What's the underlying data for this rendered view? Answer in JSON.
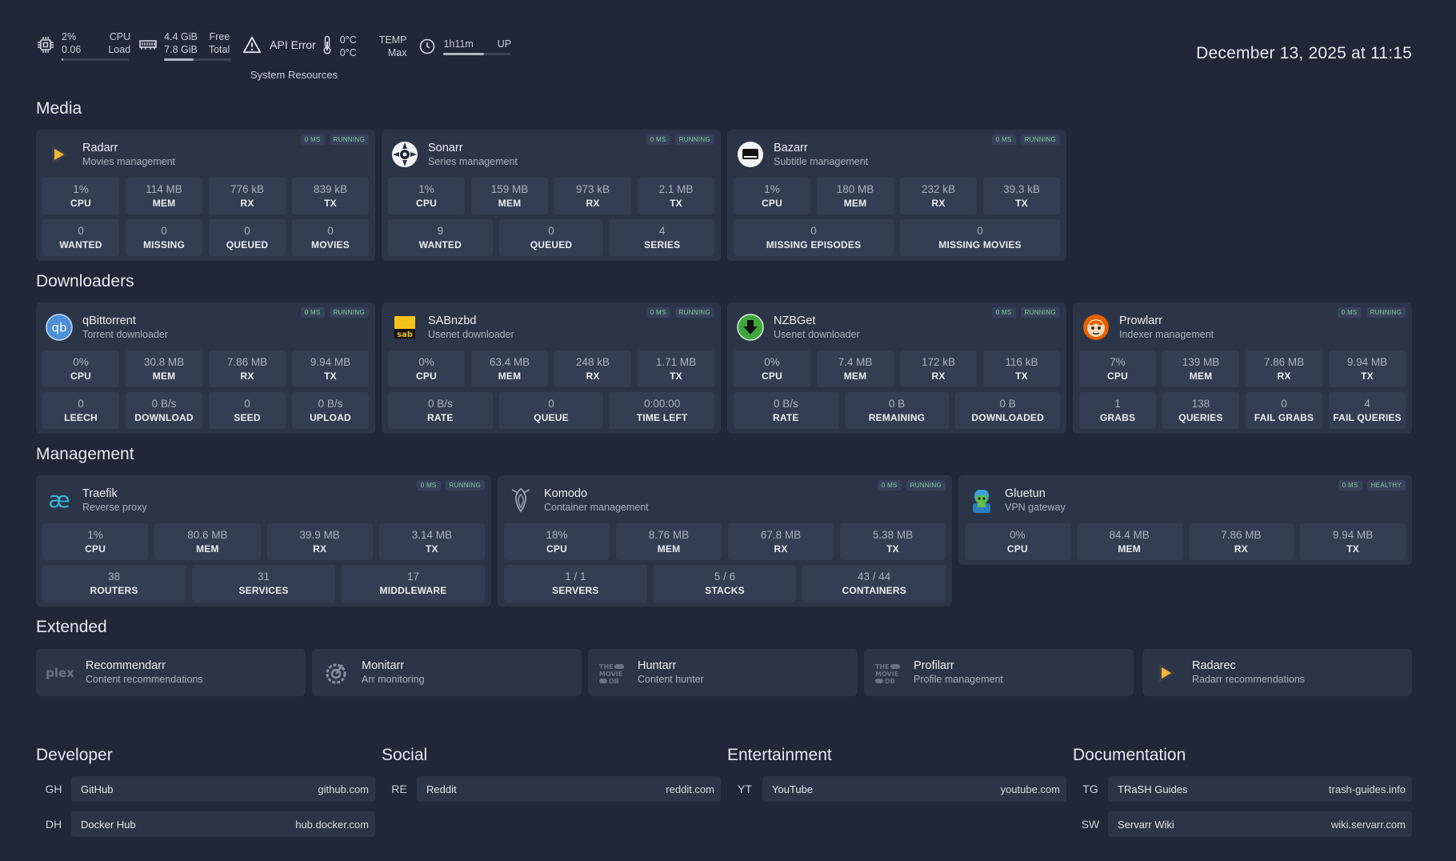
{
  "system": {
    "cpu": {
      "percent": "2%",
      "load": "0.06",
      "label1": "CPU",
      "label2": "Load",
      "usage_fraction": 0.02
    },
    "memory": {
      "free": "4.4 GiB",
      "total": "7.8 GiB",
      "label1": "Free",
      "label2": "Total",
      "used_fraction": 0.44
    },
    "api_error": "API Error",
    "temp": {
      "v1": "0°C",
      "v2": "0°C",
      "label1": "TEMP",
      "label2": "Max"
    },
    "uptime": {
      "value": "1h11m",
      "label": "UP",
      "fraction": 0.6
    },
    "section_label": "System Resources"
  },
  "datetime": "December 13, 2025 at 11:15",
  "sections": {
    "media": "Media",
    "downloaders": "Downloaders",
    "management": "Management",
    "extended": "Extended"
  },
  "media": [
    {
      "name": "Radarr",
      "desc": "Movies management",
      "badge_ms": "0 MS",
      "badge_status": "RUNNING",
      "stats": [
        {
          "v": "1%",
          "l": "CPU"
        },
        {
          "v": "114 MB",
          "l": "MEM"
        },
        {
          "v": "776 kB",
          "l": "RX"
        },
        {
          "v": "839 kB",
          "l": "TX"
        }
      ],
      "widgets": [
        {
          "v": "0",
          "l": "WANTED"
        },
        {
          "v": "0",
          "l": "MISSING"
        },
        {
          "v": "0",
          "l": "QUEUED"
        },
        {
          "v": "0",
          "l": "MOVIES"
        }
      ]
    },
    {
      "name": "Sonarr",
      "desc": "Series management",
      "badge_ms": "0 MS",
      "badge_status": "RUNNING",
      "stats": [
        {
          "v": "1%",
          "l": "CPU"
        },
        {
          "v": "159 MB",
          "l": "MEM"
        },
        {
          "v": "973 kB",
          "l": "RX"
        },
        {
          "v": "2.1 MB",
          "l": "TX"
        }
      ],
      "widgets": [
        {
          "v": "9",
          "l": "WANTED"
        },
        {
          "v": "0",
          "l": "QUEUED"
        },
        {
          "v": "4",
          "l": "SERIES"
        }
      ]
    },
    {
      "name": "Bazarr",
      "desc": "Subtitle management",
      "badge_ms": "0 MS",
      "badge_status": "RUNNING",
      "stats": [
        {
          "v": "1%",
          "l": "CPU"
        },
        {
          "v": "180 MB",
          "l": "MEM"
        },
        {
          "v": "232 kB",
          "l": "RX"
        },
        {
          "v": "39.3 kB",
          "l": "TX"
        }
      ],
      "widgets": [
        {
          "v": "0",
          "l": "MISSING EPISODES"
        },
        {
          "v": "0",
          "l": "MISSING MOVIES"
        }
      ]
    }
  ],
  "downloaders": [
    {
      "name": "qBittorrent",
      "desc": "Torrent downloader",
      "badge_ms": "0 MS",
      "badge_status": "RUNNING",
      "stats": [
        {
          "v": "0%",
          "l": "CPU"
        },
        {
          "v": "30.8 MB",
          "l": "MEM"
        },
        {
          "v": "7.86 MB",
          "l": "RX"
        },
        {
          "v": "9.94 MB",
          "l": "TX"
        }
      ],
      "widgets": [
        {
          "v": "0",
          "l": "LEECH"
        },
        {
          "v": "0 B/s",
          "l": "DOWNLOAD"
        },
        {
          "v": "0",
          "l": "SEED"
        },
        {
          "v": "0 B/s",
          "l": "UPLOAD"
        }
      ]
    },
    {
      "name": "SABnzbd",
      "desc": "Usenet downloader",
      "badge_ms": "0 MS",
      "badge_status": "RUNNING",
      "stats": [
        {
          "v": "0%",
          "l": "CPU"
        },
        {
          "v": "63.4 MB",
          "l": "MEM"
        },
        {
          "v": "248 kB",
          "l": "RX"
        },
        {
          "v": "1.71 MB",
          "l": "TX"
        }
      ],
      "widgets": [
        {
          "v": "0 B/s",
          "l": "RATE"
        },
        {
          "v": "0",
          "l": "QUEUE"
        },
        {
          "v": "0:00:00",
          "l": "TIME LEFT"
        }
      ]
    },
    {
      "name": "NZBGet",
      "desc": "Usenet downloader",
      "badge_ms": "0 MS",
      "badge_status": "RUNNING",
      "stats": [
        {
          "v": "0%",
          "l": "CPU"
        },
        {
          "v": "7.4 MB",
          "l": "MEM"
        },
        {
          "v": "172 kB",
          "l": "RX"
        },
        {
          "v": "116 kB",
          "l": "TX"
        }
      ],
      "widgets": [
        {
          "v": "0 B/s",
          "l": "RATE"
        },
        {
          "v": "0 B",
          "l": "REMAINING"
        },
        {
          "v": "0 B",
          "l": "DOWNLOADED"
        }
      ]
    },
    {
      "name": "Prowlarr",
      "desc": "Indexer management",
      "badge_ms": "0 MS",
      "badge_status": "RUNNING",
      "stats": [
        {
          "v": "7%",
          "l": "CPU"
        },
        {
          "v": "139 MB",
          "l": "MEM"
        },
        {
          "v": "7.86 MB",
          "l": "RX"
        },
        {
          "v": "9.94 MB",
          "l": "TX"
        }
      ],
      "widgets": [
        {
          "v": "1",
          "l": "GRABS"
        },
        {
          "v": "138",
          "l": "QUERIES"
        },
        {
          "v": "0",
          "l": "FAIL GRABS"
        },
        {
          "v": "4",
          "l": "FAIL QUERIES"
        }
      ]
    }
  ],
  "management": [
    {
      "name": "Traefik",
      "desc": "Reverse proxy",
      "badge_ms": "0 MS",
      "badge_status": "RUNNING",
      "stats": [
        {
          "v": "1%",
          "l": "CPU"
        },
        {
          "v": "80.6 MB",
          "l": "MEM"
        },
        {
          "v": "39.9 MB",
          "l": "RX"
        },
        {
          "v": "3.14 MB",
          "l": "TX"
        }
      ],
      "widgets": [
        {
          "v": "38",
          "l": "ROUTERS"
        },
        {
          "v": "31",
          "l": "SERVICES"
        },
        {
          "v": "17",
          "l": "MIDDLEWARE"
        }
      ]
    },
    {
      "name": "Komodo",
      "desc": "Container management",
      "badge_ms": "0 MS",
      "badge_status": "RUNNING",
      "stats": [
        {
          "v": "18%",
          "l": "CPU"
        },
        {
          "v": "8.76 MB",
          "l": "MEM"
        },
        {
          "v": "67.8 MB",
          "l": "RX"
        },
        {
          "v": "5.38 MB",
          "l": "TX"
        }
      ],
      "widgets": [
        {
          "v": "1 / 1",
          "l": "SERVERS"
        },
        {
          "v": "5 / 6",
          "l": "STACKS"
        },
        {
          "v": "43 / 44",
          "l": "CONTAINERS"
        }
      ]
    },
    {
      "name": "Gluetun",
      "desc": "VPN gateway",
      "badge_ms": "0 MS",
      "badge_status": "HEALTHY",
      "stats": [
        {
          "v": "0%",
          "l": "CPU"
        },
        {
          "v": "84.4 MB",
          "l": "MEM"
        },
        {
          "v": "7.86 MB",
          "l": "RX"
        },
        {
          "v": "9.94 MB",
          "l": "TX"
        }
      ],
      "widgets": []
    }
  ],
  "extended": [
    {
      "name": "Recommendarr",
      "desc": "Content recommendations",
      "icon": "plex-icon"
    },
    {
      "name": "Monitarr",
      "desc": "Arr monitoring",
      "icon": "monitarr-icon"
    },
    {
      "name": "Huntarr",
      "desc": "Content hunter",
      "icon": "tmdb-icon"
    },
    {
      "name": "Profilarr",
      "desc": "Profile management",
      "icon": "tmdb-icon"
    },
    {
      "name": "Radarec",
      "desc": "Radarr recommendations",
      "icon": "radarr-icon"
    }
  ],
  "bookmarks": [
    {
      "title": "Developer",
      "items": [
        {
          "abbr": "GH",
          "name": "GitHub",
          "url": "github.com"
        },
        {
          "abbr": "DH",
          "name": "Docker Hub",
          "url": "hub.docker.com"
        }
      ]
    },
    {
      "title": "Social",
      "items": [
        {
          "abbr": "RE",
          "name": "Reddit",
          "url": "reddit.com"
        }
      ]
    },
    {
      "title": "Entertainment",
      "items": [
        {
          "abbr": "YT",
          "name": "YouTube",
          "url": "youtube.com"
        }
      ]
    },
    {
      "title": "Documentation",
      "items": [
        {
          "abbr": "TG",
          "name": "TRaSH Guides",
          "url": "trash-guides.info"
        },
        {
          "abbr": "SW",
          "name": "Servarr Wiki",
          "url": "wiki.servarr.com"
        }
      ]
    }
  ],
  "colors": {
    "background": "#1f2738",
    "card": "#2c3547",
    "cell": "#343e52",
    "status_green": "#7fd09a"
  }
}
